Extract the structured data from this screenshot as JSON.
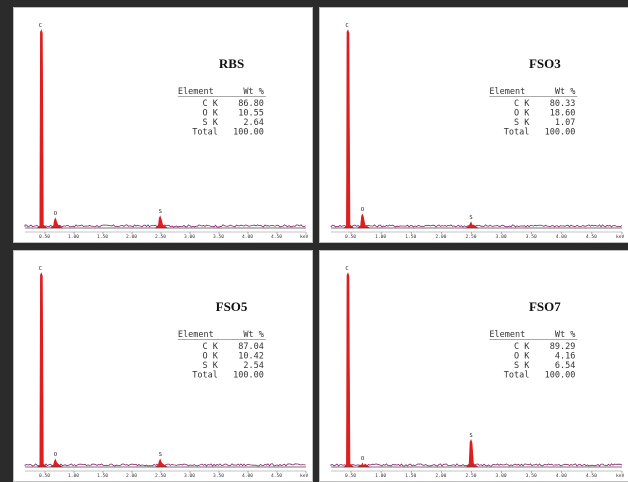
{
  "chart_data": [
    {
      "type": "line",
      "title": "RBS",
      "xlabel": "keV",
      "x_ticks": [
        "0.50",
        "1.00",
        "1.50",
        "2.00",
        "2.50",
        "3.00",
        "3.50",
        "4.00",
        "4.50",
        "keV"
      ],
      "xlim": [
        0,
        4.8
      ],
      "ylim": [
        0,
        100
      ],
      "peaks": [
        {
          "label": "C",
          "x": 0.28,
          "y": 100
        },
        {
          "label": "O",
          "x": 0.52,
          "y": 5
        },
        {
          "label": "S",
          "x": 2.31,
          "y": 6
        }
      ],
      "table": {
        "header": [
          "Element",
          "Wt %"
        ],
        "rows": [
          [
            "C K",
            "86.80"
          ],
          [
            "O K",
            "10.55"
          ],
          [
            "S K",
            "2.64"
          ],
          [
            "Total",
            "100.00"
          ]
        ]
      },
      "colors": {
        "spectrum": "#dd1f1f",
        "baseline": "#8a1f6f"
      }
    },
    {
      "type": "line",
      "title": "FSO3",
      "xlabel": "keV",
      "x_ticks": [
        "0.50",
        "1.00",
        "1.50",
        "2.00",
        "2.50",
        "3.00",
        "3.50",
        "4.00",
        "4.50",
        "keV"
      ],
      "xlim": [
        0,
        4.8
      ],
      "ylim": [
        0,
        100
      ],
      "peaks": [
        {
          "label": "C",
          "x": 0.28,
          "y": 100
        },
        {
          "label": "O",
          "x": 0.52,
          "y": 7
        },
        {
          "label": "S",
          "x": 2.31,
          "y": 3
        }
      ],
      "table": {
        "header": [
          "Element",
          "Wt %"
        ],
        "rows": [
          [
            "C K",
            "80.33"
          ],
          [
            "O K",
            "18.60"
          ],
          [
            "S K",
            "1.07"
          ],
          [
            "Total",
            "100.00"
          ]
        ]
      },
      "colors": {
        "spectrum": "#dd1f1f",
        "baseline": "#8a1f6f"
      }
    },
    {
      "type": "line",
      "title": "FSO5",
      "xlabel": "keV",
      "x_ticks": [
        "0.50",
        "1.00",
        "1.50",
        "2.00",
        "2.50",
        "3.00",
        "3.50",
        "4.00",
        "4.50",
        "keV"
      ],
      "xlim": [
        0,
        4.8
      ],
      "ylim": [
        0,
        100
      ],
      "peaks": [
        {
          "label": "C",
          "x": 0.28,
          "y": 100
        },
        {
          "label": "O",
          "x": 0.52,
          "y": 4
        },
        {
          "label": "S",
          "x": 2.31,
          "y": 4
        }
      ],
      "table": {
        "header": [
          "Element",
          "Wt %"
        ],
        "rows": [
          [
            "C K",
            "87.04"
          ],
          [
            "O K",
            "10.42"
          ],
          [
            "S K",
            "2.54"
          ],
          [
            "Total",
            "100.00"
          ]
        ]
      },
      "colors": {
        "spectrum": "#dd1f1f",
        "baseline": "#8a1f6f"
      }
    },
    {
      "type": "line",
      "title": "FSO7",
      "xlabel": "keV",
      "x_ticks": [
        "0.50",
        "1.00",
        "1.50",
        "2.00",
        "2.50",
        "3.00",
        "3.50",
        "4.00",
        "4.50",
        "keV"
      ],
      "xlim": [
        0,
        4.8
      ],
      "ylim": [
        0,
        100
      ],
      "peaks": [
        {
          "label": "C",
          "x": 0.28,
          "y": 100
        },
        {
          "label": "O",
          "x": 0.52,
          "y": 2
        },
        {
          "label": "S",
          "x": 2.31,
          "y": 14
        }
      ],
      "table": {
        "header": [
          "Element",
          "Wt %"
        ],
        "rows": [
          [
            "C K",
            "89.29"
          ],
          [
            "O K",
            "4.16"
          ],
          [
            "S K",
            "6.54"
          ],
          [
            "Total",
            "100.00"
          ]
        ]
      },
      "colors": {
        "spectrum": "#dd1f1f",
        "baseline": "#8a1f6f"
      }
    }
  ]
}
